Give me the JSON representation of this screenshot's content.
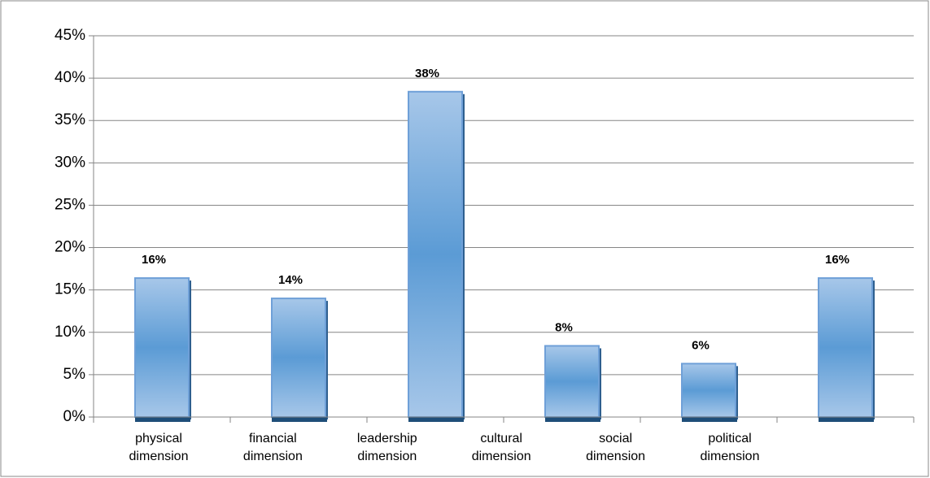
{
  "chart_data": {
    "type": "bar",
    "categories": [
      "physical dimension",
      "financial dimension",
      "leadership dimension",
      "cultural dimension",
      "social dimension",
      "political dimension"
    ],
    "values": [
      16.4,
      14,
      38.4,
      8.4,
      6.3,
      16.4
    ],
    "value_labels": [
      "16%",
      "14%",
      "38%",
      "8%",
      "6%",
      "16%"
    ],
    "color": "#5b9bd5",
    "ylim": [
      0,
      45
    ],
    "yticks": [
      {
        "value": 0,
        "label": "0%"
      },
      {
        "value": 5,
        "label": "5%"
      },
      {
        "value": 10,
        "label": "10%"
      },
      {
        "value": 15,
        "label": "15%"
      },
      {
        "value": 20,
        "label": "20%"
      },
      {
        "value": 25,
        "label": "25%"
      },
      {
        "value": 30,
        "label": "30%"
      },
      {
        "value": 35,
        "label": "35%"
      },
      {
        "value": 40,
        "label": "40%"
      },
      {
        "value": 45,
        "label": "45%"
      }
    ],
    "grid": true
  }
}
